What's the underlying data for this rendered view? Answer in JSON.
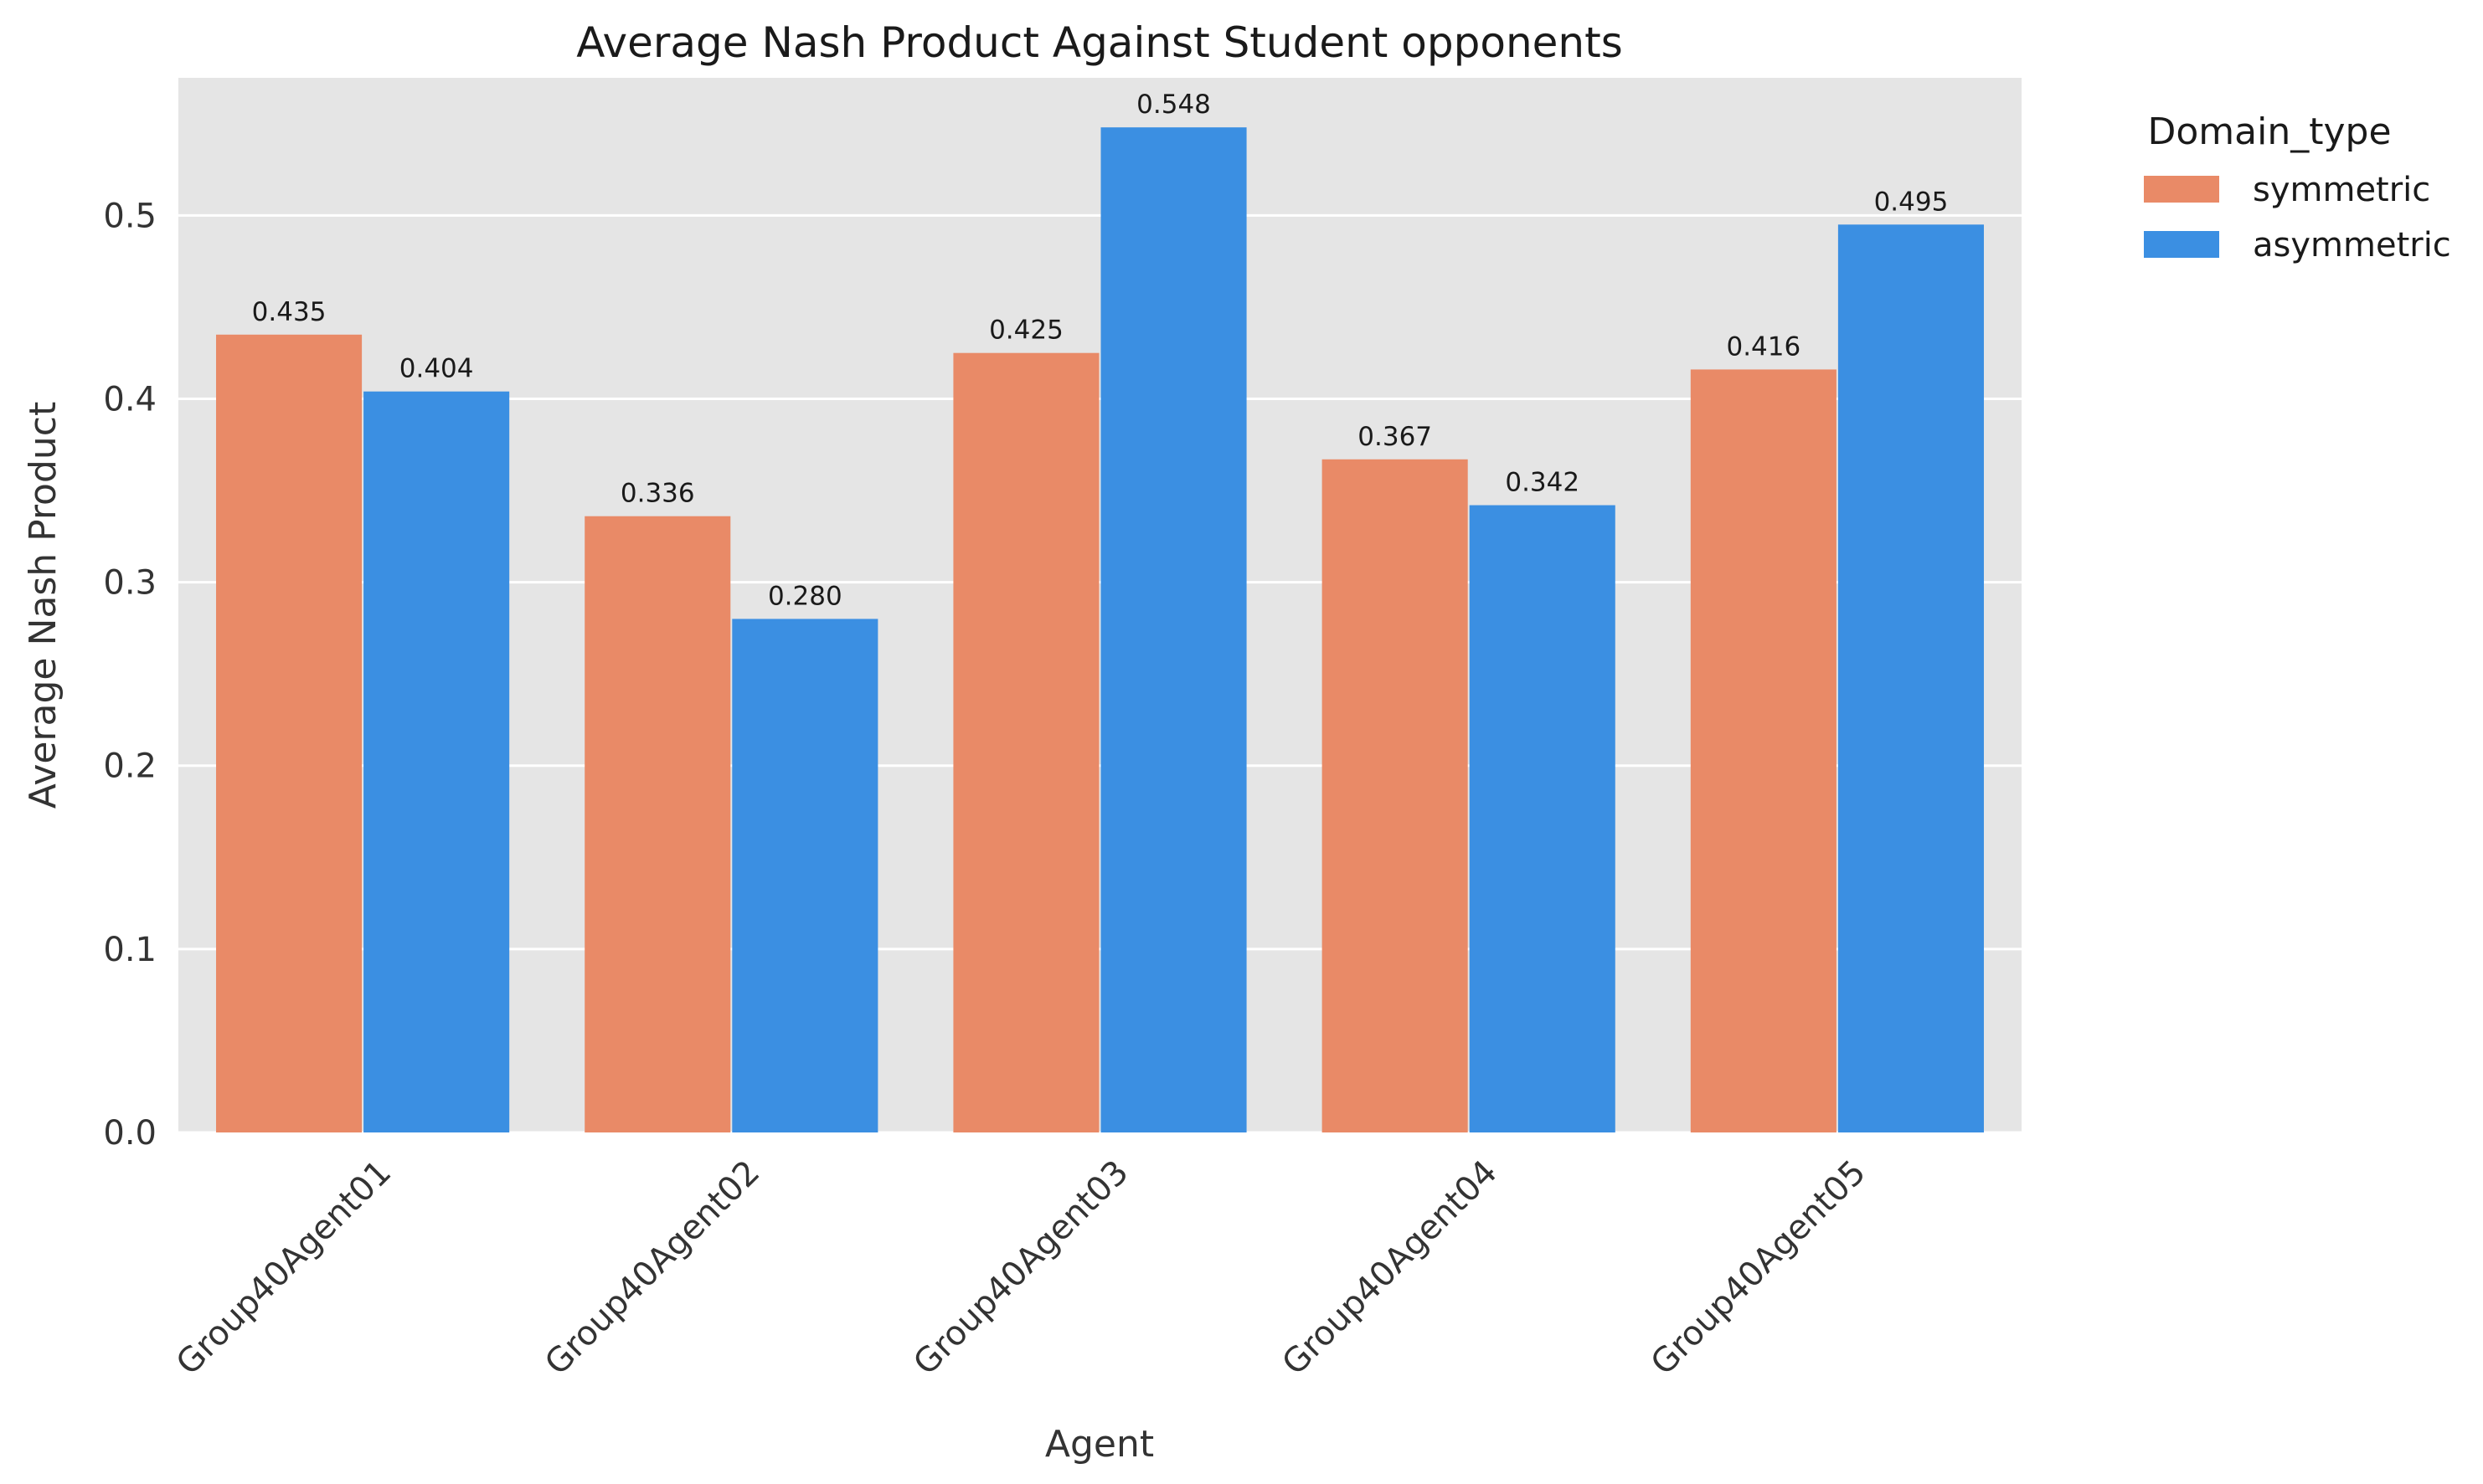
{
  "chart_data": {
    "type": "bar",
    "title": "Average Nash Product Against Student opponents",
    "xlabel": "Agent",
    "ylabel": "Average Nash Product",
    "categories": [
      "Group40Agent01",
      "Group40Agent02",
      "Group40Agent03",
      "Group40Agent04",
      "Group40Agent05"
    ],
    "series": [
      {
        "name": "symmetric",
        "color": "#E98A67",
        "values": [
          0.435,
          0.336,
          0.425,
          0.367,
          0.416
        ],
        "labels": [
          "0.435",
          "0.336",
          "0.425",
          "0.367",
          "0.416"
        ]
      },
      {
        "name": "asymmetric",
        "color": "#3B8FE2",
        "values": [
          0.404,
          0.28,
          0.548,
          0.342,
          0.495
        ],
        "labels": [
          "0.404",
          "0.280",
          "0.548",
          "0.342",
          "0.495"
        ]
      }
    ],
    "ylim": [
      0,
      0.575
    ],
    "yticks": [
      0.0,
      0.1,
      0.2,
      0.3,
      0.4,
      0.5
    ],
    "ytick_labels": [
      "0.0",
      "0.1",
      "0.2",
      "0.3",
      "0.4",
      "0.5"
    ],
    "grid": true,
    "legend": {
      "title": "Domain_type",
      "placement": "outside-top-right"
    },
    "x_tick_rotation_deg": 45,
    "colors": {
      "plot_background": "#E5E5E5",
      "gridline": "#FFFFFF"
    }
  }
}
